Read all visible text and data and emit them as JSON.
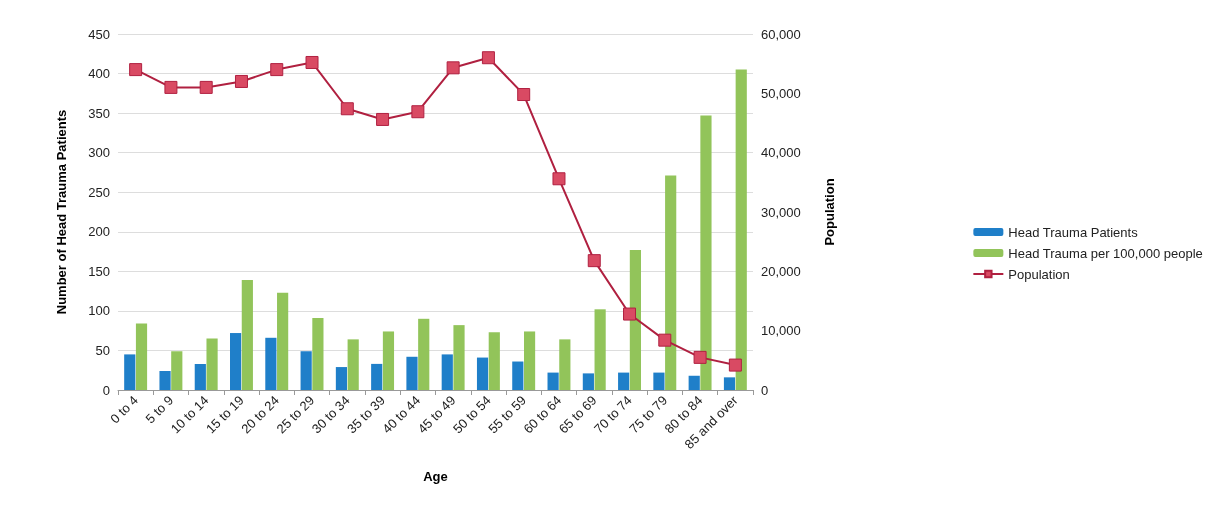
{
  "chart_data": {
    "type": "bar",
    "xlabel": "Age",
    "ylabel": "Number of Head Trauma Patients",
    "y2label": "Population",
    "categories": [
      "0 to 4",
      "5 to 9",
      "10 to 14",
      "15 to 19",
      "20 to 24",
      "25 to 29",
      "30 to 34",
      "35 to 39",
      "40 to 44",
      "45 to 49",
      "50 to 54",
      "55 to 59",
      "60 to 64",
      "65 to 69",
      "70 to 74",
      "75 to 79",
      "80 to 84",
      "85 and over"
    ],
    "series": [
      {
        "name": "Head Trauma Patients",
        "color": "#1f7fc9",
        "values": [
          45,
          24,
          33,
          72,
          66,
          49,
          29,
          33,
          42,
          45,
          41,
          36,
          22,
          21,
          22,
          22,
          18,
          16
        ]
      },
      {
        "name": "Head Trauma per 100,000 people",
        "color": "#92c45a",
        "values": [
          84,
          49,
          65,
          139,
          123,
          91,
          64,
          74,
          90,
          82,
          73,
          74,
          64,
          102,
          177,
          271,
          347,
          405
        ]
      },
      {
        "name": "Population",
        "type": "line",
        "axis": "y2",
        "color": "#b02040",
        "values": [
          54000,
          51000,
          51000,
          52000,
          54000,
          55200,
          47400,
          45600,
          46900,
          54300,
          56000,
          49800,
          35600,
          21800,
          12800,
          8400,
          5500,
          4200
        ]
      }
    ],
    "ylim": [
      0,
      450
    ],
    "yticks": [
      0,
      50,
      100,
      150,
      200,
      250,
      300,
      350,
      400,
      450
    ],
    "y2lim": [
      0,
      60000
    ],
    "y2ticks": [
      {
        "value": 0,
        "label": "0"
      },
      {
        "value": 10000,
        "label": "10,000"
      },
      {
        "value": 20000,
        "label": "20,000"
      },
      {
        "value": 30000,
        "label": "30,000"
      },
      {
        "value": 40000,
        "label": "40,000"
      },
      {
        "value": 50000,
        "label": "50,000"
      },
      {
        "value": 60000,
        "label": "60,000"
      }
    ],
    "grid": "y",
    "legend": "right",
    "marker": "square"
  }
}
